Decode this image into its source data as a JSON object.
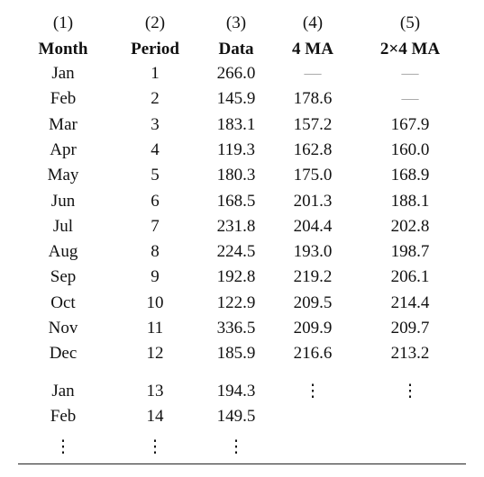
{
  "table": {
    "header_numbers": [
      "(1)",
      "(2)",
      "(3)",
      "(4)",
      "(5)"
    ],
    "header_names": [
      "Month",
      "Period",
      "Data",
      "4 MA",
      "2×4 MA"
    ],
    "rows": [
      [
        "Jan",
        "1",
        "266.0",
        "—",
        "—"
      ],
      [
        "Feb",
        "2",
        "145.9",
        "178.6",
        "—"
      ],
      [
        "Mar",
        "3",
        "183.1",
        "157.2",
        "167.9"
      ],
      [
        "Apr",
        "4",
        "119.3",
        "162.8",
        "160.0"
      ],
      [
        "May",
        "5",
        "180.3",
        "175.0",
        "168.9"
      ],
      [
        "Jun",
        "6",
        "168.5",
        "201.3",
        "188.1"
      ],
      [
        "Jul",
        "7",
        "231.8",
        "204.4",
        "202.8"
      ],
      [
        "Aug",
        "8",
        "224.5",
        "193.0",
        "198.7"
      ],
      [
        "Sep",
        "9",
        "192.8",
        "219.2",
        "206.1"
      ],
      [
        "Oct",
        "10",
        "122.9",
        "209.5",
        "214.4"
      ],
      [
        "Nov",
        "11",
        "336.5",
        "209.9",
        "209.7"
      ],
      [
        "Dec",
        "12",
        "185.9",
        "216.6",
        "213.2"
      ],
      [
        "Jan",
        "13",
        "194.3",
        "⋮",
        "⋮"
      ],
      [
        "Feb",
        "14",
        "149.5"
      ],
      [
        "⋮",
        "⋮",
        "⋮"
      ]
    ]
  }
}
